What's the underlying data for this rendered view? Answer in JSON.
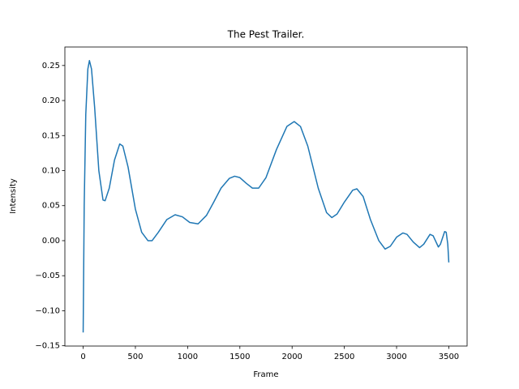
{
  "chart_data": {
    "type": "line",
    "title": "The Pest Trailer.",
    "x_label": "Frame",
    "y_label": "Intensity",
    "color": "#1f77b4",
    "x": [
      0,
      10,
      25,
      45,
      60,
      80,
      110,
      150,
      190,
      210,
      250,
      300,
      350,
      380,
      430,
      500,
      560,
      620,
      660,
      720,
      800,
      880,
      950,
      1020,
      1100,
      1180,
      1250,
      1320,
      1400,
      1450,
      1500,
      1560,
      1620,
      1680,
      1750,
      1850,
      1950,
      2020,
      2080,
      2150,
      2250,
      2330,
      2380,
      2430,
      2500,
      2580,
      2620,
      2680,
      2750,
      2830,
      2890,
      2940,
      3000,
      3060,
      3100,
      3160,
      3220,
      3260,
      3320,
      3350,
      3400,
      3420,
      3460,
      3475,
      3490,
      3500
    ],
    "values": [
      -0.131,
      0.05,
      0.18,
      0.245,
      0.257,
      0.245,
      0.19,
      0.1,
      0.058,
      0.057,
      0.075,
      0.115,
      0.138,
      0.135,
      0.105,
      0.045,
      0.012,
      0.0,
      0.0,
      0.012,
      0.03,
      0.037,
      0.034,
      0.026,
      0.024,
      0.036,
      0.055,
      0.075,
      0.089,
      0.092,
      0.09,
      0.082,
      0.075,
      0.075,
      0.09,
      0.13,
      0.163,
      0.17,
      0.163,
      0.135,
      0.075,
      0.04,
      0.033,
      0.038,
      0.055,
      0.072,
      0.074,
      0.063,
      0.03,
      0.0,
      -0.012,
      -0.008,
      0.005,
      0.011,
      0.009,
      -0.002,
      -0.01,
      -0.005,
      0.009,
      0.007,
      -0.009,
      -0.005,
      0.013,
      0.012,
      -0.005,
      -0.031
    ],
    "xlim": [
      -175,
      3675
    ],
    "xticks": [
      0,
      500,
      1000,
      1500,
      2000,
      2500,
      3000,
      3500
    ],
    "ylim": [
      -0.1504,
      0.2764
    ],
    "yticks": [
      {
        "value": -0.15,
        "label": "−0.15"
      },
      {
        "value": -0.1,
        "label": "−0.10"
      },
      {
        "value": -0.05,
        "label": "−0.05"
      },
      {
        "value": 0,
        "label": "0.00"
      },
      {
        "value": 0.05,
        "label": "0.05"
      },
      {
        "value": 0.1,
        "label": "0.10"
      },
      {
        "value": 0.15,
        "label": "0.15"
      },
      {
        "value": 0.2,
        "label": "0.20"
      },
      {
        "value": 0.25,
        "label": "0.25"
      }
    ]
  }
}
